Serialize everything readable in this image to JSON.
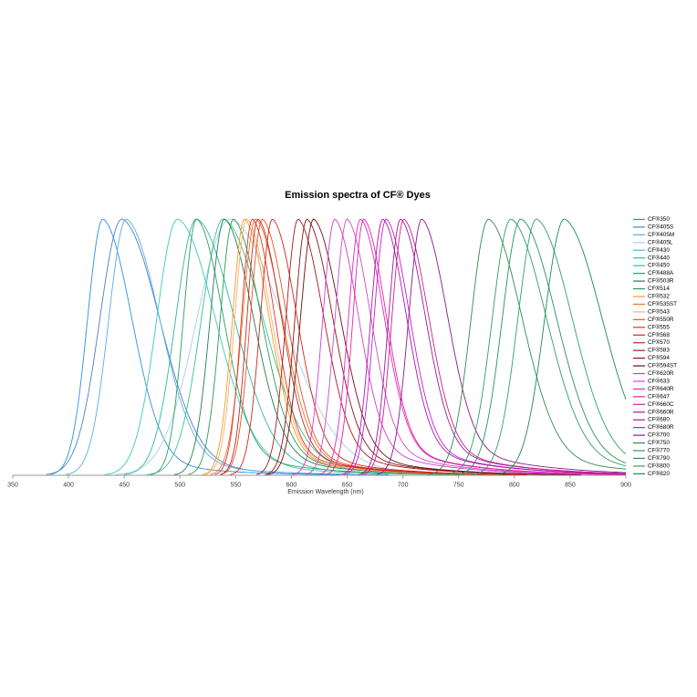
{
  "chart_data": {
    "type": "line",
    "title": "Emission spectra of CF® Dyes",
    "xlabel": "Emission Wavelength (nm)",
    "x_range": [
      350,
      900
    ],
    "x_ticks": [
      350,
      400,
      450,
      500,
      550,
      600,
      650,
      700,
      750,
      800,
      850,
      900
    ],
    "y_normalized": true,
    "grid": false,
    "legend_position": "right",
    "series": [
      {
        "name": "CF®350",
        "color": "#4a80c4",
        "peak_nm": 448,
        "sigma_left_nm": 20,
        "sigma_right_nm": 34,
        "tail_frac": 0.1,
        "tail_tau_nm": 65
      },
      {
        "name": "CF®405S",
        "color": "#2e8fe0",
        "peak_nm": 431,
        "sigma_left_nm": 14,
        "sigma_right_nm": 26,
        "tail_frac": 0.12,
        "tail_tau_nm": 55
      },
      {
        "name": "CF®405M",
        "color": "#58ace6",
        "peak_nm": 452,
        "sigma_left_nm": 16,
        "sigma_right_nm": 30,
        "tail_frac": 0.12,
        "tail_tau_nm": 60
      },
      {
        "name": "CF®405L",
        "color": "#a9cce8",
        "peak_nm": 545,
        "sigma_left_nm": 30,
        "sigma_right_nm": 48,
        "tail_frac": 0.08,
        "tail_tau_nm": 80
      },
      {
        "name": "CF®430",
        "color": "#3cc8bc",
        "peak_nm": 498,
        "sigma_left_nm": 19,
        "sigma_right_nm": 34,
        "tail_frac": 0.1,
        "tail_tau_nm": 70
      },
      {
        "name": "CF®440",
        "color": "#2bb89e",
        "peak_nm": 515,
        "sigma_left_nm": 19,
        "sigma_right_nm": 34,
        "tail_frac": 0.1,
        "tail_tau_nm": 70
      },
      {
        "name": "CF®450",
        "color": "#36c28f",
        "peak_nm": 539,
        "sigma_left_nm": 20,
        "sigma_right_nm": 36,
        "tail_frac": 0.1,
        "tail_tau_nm": 70
      },
      {
        "name": "CF®488A",
        "color": "#2f9e5f",
        "peak_nm": 515,
        "sigma_left_nm": 12,
        "sigma_right_nm": 24,
        "tail_frac": 0.15,
        "tail_tau_nm": 60
      },
      {
        "name": "CF®503R",
        "color": "#1f7f4e",
        "peak_nm": 540,
        "sigma_left_nm": 13,
        "sigma_right_nm": 26,
        "tail_frac": 0.15,
        "tail_tau_nm": 60
      },
      {
        "name": "CF®514",
        "color": "#2a9a58",
        "peak_nm": 548,
        "sigma_left_nm": 12,
        "sigma_right_nm": 25,
        "tail_frac": 0.15,
        "tail_tau_nm": 60
      },
      {
        "name": "CF®532",
        "color": "#f39a2a",
        "peak_nm": 558,
        "sigma_left_nm": 11,
        "sigma_right_nm": 22,
        "tail_frac": 0.15,
        "tail_tau_nm": 55
      },
      {
        "name": "CF®535ST",
        "color": "#e8762a",
        "peak_nm": 568,
        "sigma_left_nm": 12,
        "sigma_right_nm": 24,
        "tail_frac": 0.15,
        "tail_tau_nm": 55
      },
      {
        "name": "CF®543",
        "color": "#f6b066",
        "peak_nm": 560,
        "sigma_left_nm": 11,
        "sigma_right_nm": 22,
        "tail_frac": 0.15,
        "tail_tau_nm": 55
      },
      {
        "name": "CF®550R",
        "color": "#e6512d",
        "peak_nm": 574,
        "sigma_left_nm": 11,
        "sigma_right_nm": 22,
        "tail_frac": 0.16,
        "tail_tau_nm": 55
      },
      {
        "name": "CF®555",
        "color": "#e03127",
        "peak_nm": 565,
        "sigma_left_nm": 10,
        "sigma_right_nm": 20,
        "tail_frac": 0.16,
        "tail_tau_nm": 55
      },
      {
        "name": "CF®568",
        "color": "#d42222",
        "peak_nm": 583,
        "sigma_left_nm": 11,
        "sigma_right_nm": 22,
        "tail_frac": 0.16,
        "tail_tau_nm": 55
      },
      {
        "name": "CF®570",
        "color": "#c22a1c",
        "peak_nm": 570,
        "sigma_left_nm": 10,
        "sigma_right_nm": 21,
        "tail_frac": 0.16,
        "tail_tau_nm": 55
      },
      {
        "name": "CF®583",
        "color": "#a81a1a",
        "peak_nm": 606,
        "sigma_left_nm": 11,
        "sigma_right_nm": 23,
        "tail_frac": 0.16,
        "tail_tau_nm": 58
      },
      {
        "name": "CF®594",
        "color": "#8f1313",
        "peak_nm": 614,
        "sigma_left_nm": 11,
        "sigma_right_nm": 23,
        "tail_frac": 0.16,
        "tail_tau_nm": 58
      },
      {
        "name": "CF®594ST",
        "color": "#6e0e14",
        "peak_nm": 620,
        "sigma_left_nm": 12,
        "sigma_right_nm": 24,
        "tail_frac": 0.16,
        "tail_tau_nm": 58
      },
      {
        "name": "CF®620R",
        "color": "#d43bd0",
        "peak_nm": 639,
        "sigma_left_nm": 11,
        "sigma_right_nm": 21,
        "tail_frac": 0.18,
        "tail_tau_nm": 60
      },
      {
        "name": "CF®633",
        "color": "#cb4ccb",
        "peak_nm": 650,
        "sigma_left_nm": 11,
        "sigma_right_nm": 21,
        "tail_frac": 0.18,
        "tail_tau_nm": 60
      },
      {
        "name": "CF®640R",
        "color": "#e326c8",
        "peak_nm": 662,
        "sigma_left_nm": 11,
        "sigma_right_nm": 21,
        "tail_frac": 0.18,
        "tail_tau_nm": 60
      },
      {
        "name": "CF®647",
        "color": "#ee1f9e",
        "peak_nm": 665,
        "sigma_left_nm": 10,
        "sigma_right_nm": 20,
        "tail_frac": 0.18,
        "tail_tau_nm": 60
      },
      {
        "name": "CF®660C",
        "color": "#c71fc7",
        "peak_nm": 685,
        "sigma_left_nm": 11,
        "sigma_right_nm": 21,
        "tail_frac": 0.18,
        "tail_tau_nm": 62
      },
      {
        "name": "CF®660R",
        "color": "#ac16ac",
        "peak_nm": 682,
        "sigma_left_nm": 11,
        "sigma_right_nm": 21,
        "tail_frac": 0.18,
        "tail_tau_nm": 62
      },
      {
        "name": "CF®680",
        "color": "#991e99",
        "peak_nm": 698,
        "sigma_left_nm": 11,
        "sigma_right_nm": 22,
        "tail_frac": 0.18,
        "tail_tau_nm": 62
      },
      {
        "name": "CF®680R",
        "color": "#cf1f8a",
        "peak_nm": 701,
        "sigma_left_nm": 11,
        "sigma_right_nm": 22,
        "tail_frac": 0.18,
        "tail_tau_nm": 62
      },
      {
        "name": "CF®700",
        "color": "#8a198a",
        "peak_nm": 717,
        "sigma_left_nm": 12,
        "sigma_right_nm": 23,
        "tail_frac": 0.18,
        "tail_tau_nm": 65
      },
      {
        "name": "CF®750",
        "color": "#2e8b57",
        "peak_nm": 777,
        "sigma_left_nm": 16,
        "sigma_right_nm": 30,
        "tail_frac": 0.14,
        "tail_tau_nm": 70
      },
      {
        "name": "CF®770",
        "color": "#2f9e63",
        "peak_nm": 797,
        "sigma_left_nm": 17,
        "sigma_right_nm": 32,
        "tail_frac": 0.14,
        "tail_tau_nm": 70
      },
      {
        "name": "CF®790",
        "color": "#27935c",
        "peak_nm": 806,
        "sigma_left_nm": 17,
        "sigma_right_nm": 32,
        "tail_frac": 0.14,
        "tail_tau_nm": 70
      },
      {
        "name": "CF®800",
        "color": "#2fa268",
        "peak_nm": 820,
        "sigma_left_nm": 17,
        "sigma_right_nm": 32,
        "tail_frac": 0.14,
        "tail_tau_nm": 70
      },
      {
        "name": "CF®820",
        "color": "#1f8a55",
        "peak_nm": 845,
        "sigma_left_nm": 18,
        "sigma_right_nm": 34,
        "tail_frac": 0.14,
        "tail_tau_nm": 70
      }
    ]
  }
}
